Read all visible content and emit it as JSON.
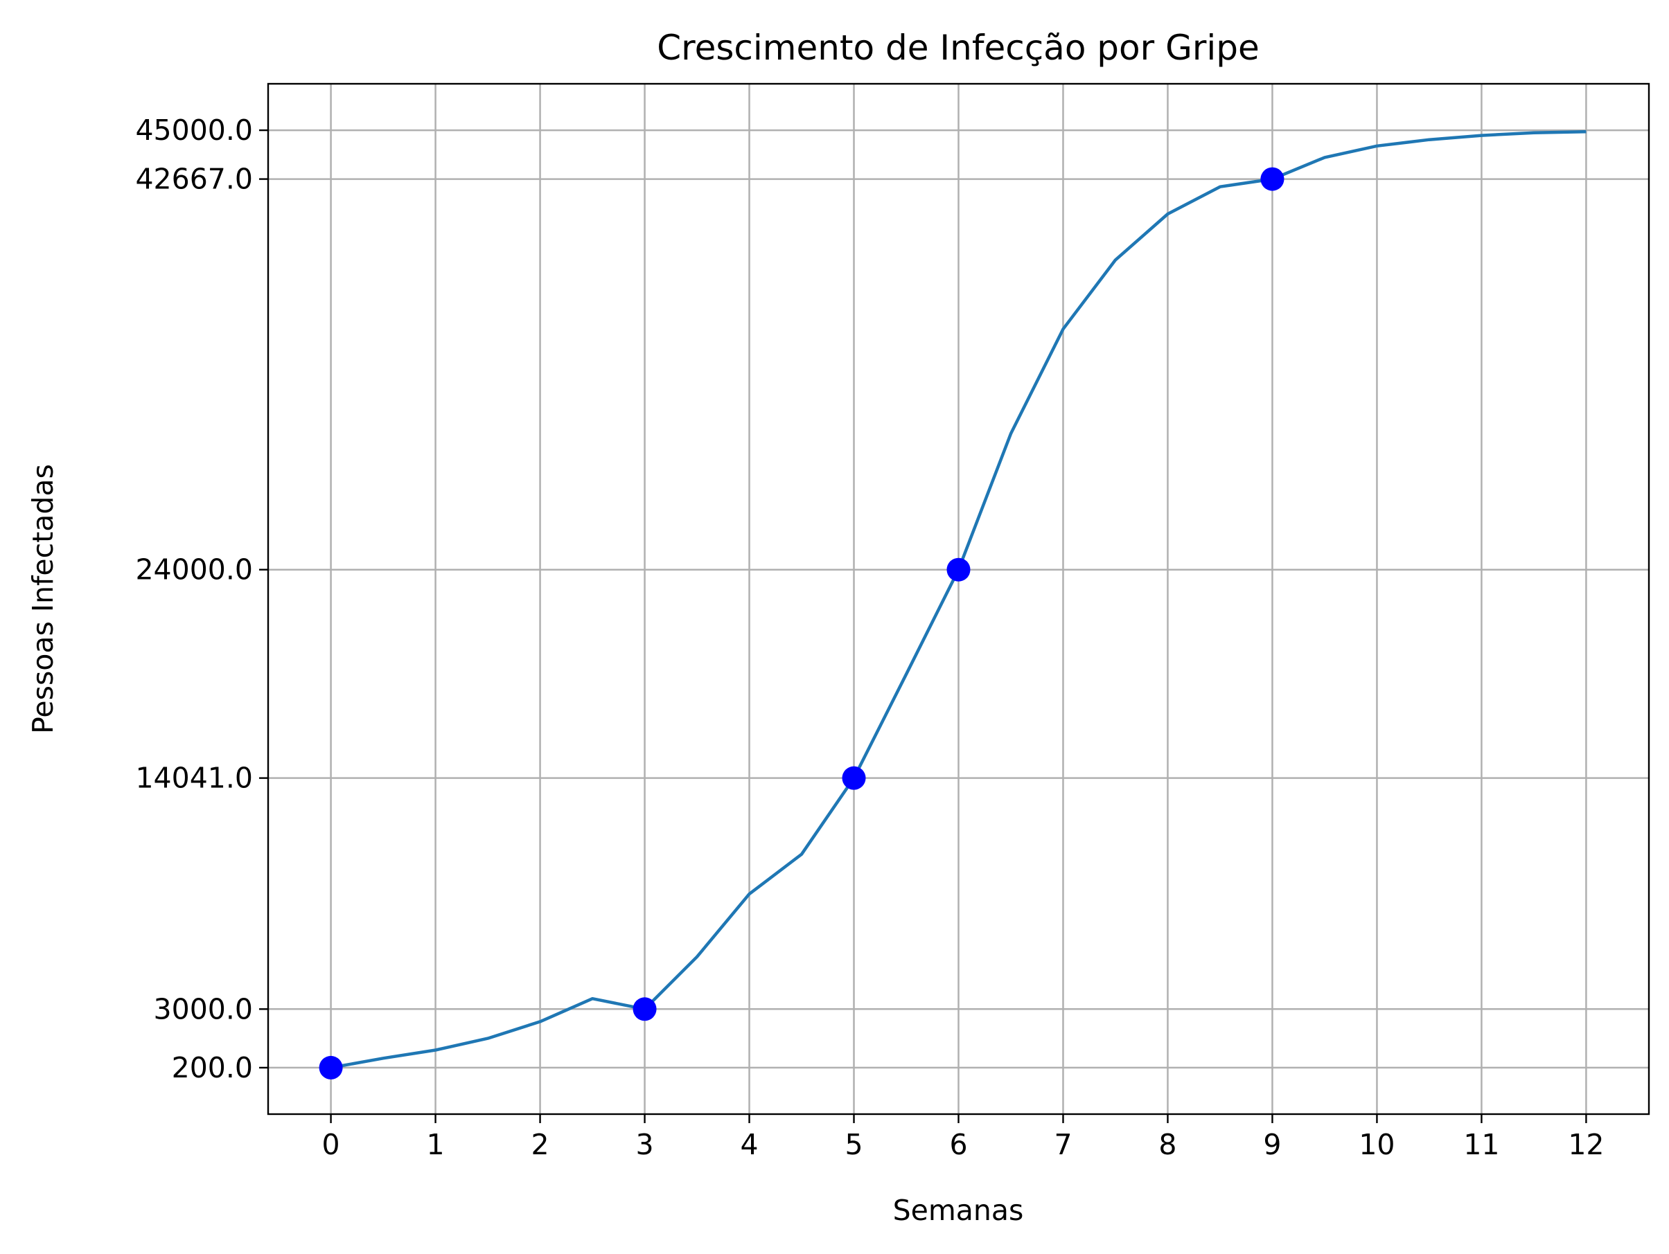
{
  "chart_data": {
    "type": "line",
    "title": "Crescimento de Infecção por Gripe",
    "xlabel": "Semanas",
    "ylabel": "Pessoas Infectadas",
    "xlim": [
      -0.6,
      12.6
    ],
    "ylim": [
      -2020,
      47220
    ],
    "grid": true,
    "x_ticks": [
      0,
      1,
      2,
      3,
      4,
      5,
      6,
      7,
      8,
      9,
      10,
      11,
      12
    ],
    "x_tick_labels": [
      "0",
      "1",
      "2",
      "3",
      "4",
      "5",
      "6",
      "7",
      "8",
      "9",
      "10",
      "11",
      "12"
    ],
    "y_ticks": [
      200,
      3000,
      14041,
      24000,
      42667,
      45000
    ],
    "y_tick_labels": [
      "200.0",
      "3000.0",
      "14041.0",
      "24000.0",
      "42667.0",
      "45000.0"
    ],
    "series": [
      {
        "kind": "line",
        "color": "#1f77b4",
        "x": [
          0,
          0.5,
          1,
          1.5,
          2,
          2.5,
          3,
          3.5,
          4,
          4.5,
          5,
          5.5,
          6,
          6.5,
          7,
          7.5,
          8,
          8.5,
          9,
          9.5,
          10,
          10.5,
          11,
          11.5,
          12
        ],
        "y": [
          200,
          650,
          1040,
          1600,
          2400,
          3500,
          3000,
          5500,
          8500,
          10400,
          14041,
          19000,
          24000,
          30500,
          35500,
          38800,
          41000,
          42300,
          42667,
          43700,
          44250,
          44550,
          44750,
          44880,
          44930
        ]
      },
      {
        "kind": "points",
        "color": "#0000ff",
        "x": [
          0,
          3,
          5,
          6,
          9
        ],
        "y": [
          200,
          3000,
          14041,
          24000,
          42667
        ]
      }
    ]
  }
}
